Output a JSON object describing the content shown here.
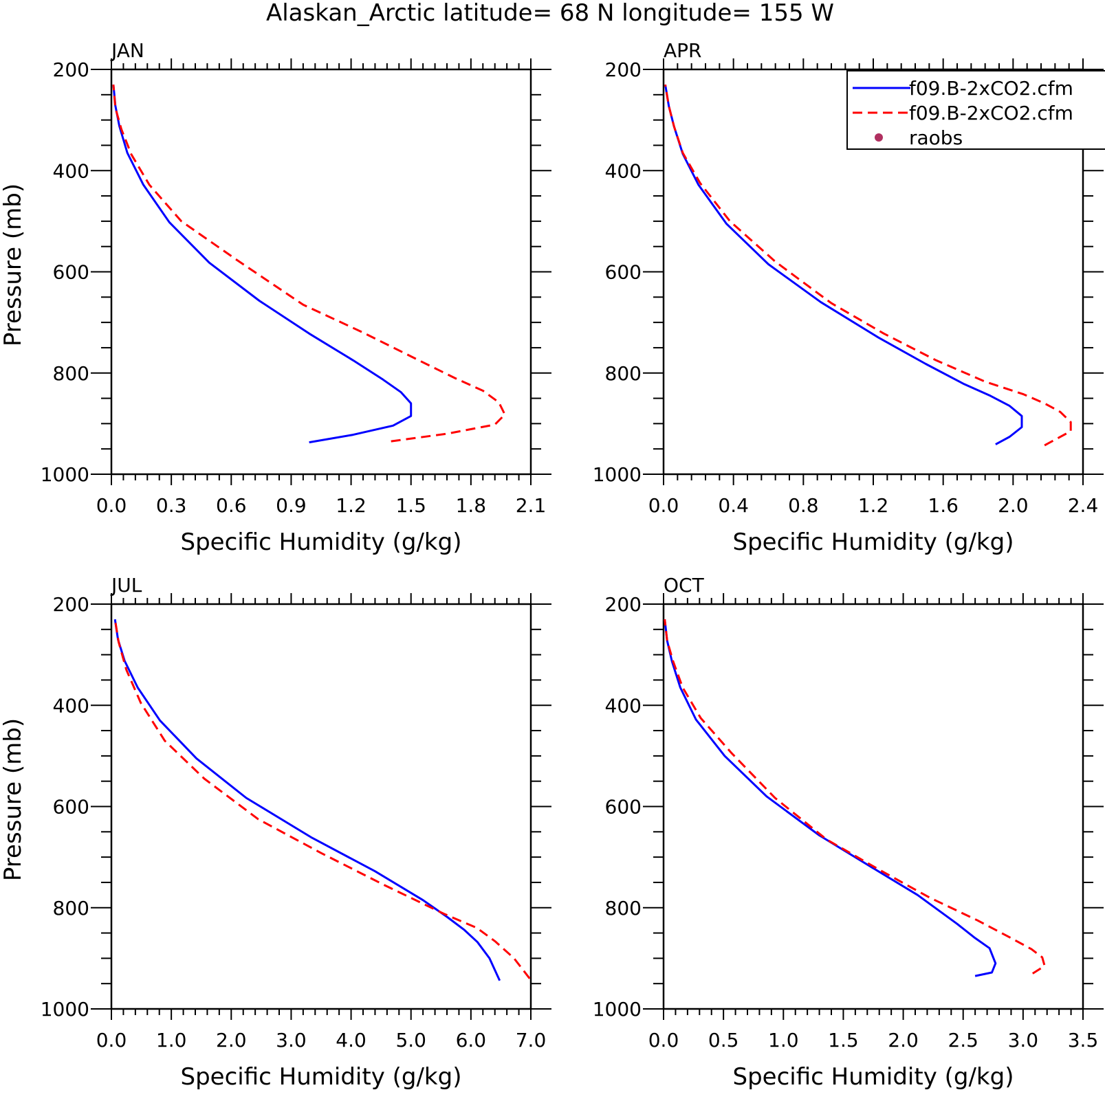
{
  "title": "Alaskan_Arctic  latitude= 68 N longitude= 155 W",
  "legend": {
    "placement": "top-right of APR panel",
    "entries": [
      {
        "label": "f09.B-2xCO2.cfm",
        "style": "solid",
        "color": "#0000ff"
      },
      {
        "label": "f09.B-2xCO2.cfm",
        "style": "dashed",
        "color": "#ff0000"
      },
      {
        "label": "raobs",
        "style": "marker",
        "color": "#b03060"
      }
    ]
  },
  "chart_data": [
    {
      "type": "line",
      "title": "JAN",
      "xlabel": "Specific Humidity (g/kg)",
      "ylabel": "Pressure (mb)",
      "xlim": [
        0,
        2.1
      ],
      "ylim": [
        1000,
        200
      ],
      "xticks": [
        "0.0",
        "0.3",
        "0.6",
        "0.9",
        "1.2",
        "1.5",
        "1.8",
        "2.1"
      ],
      "yticks": [
        "200",
        "400",
        "600",
        "800",
        "1000"
      ],
      "series": [
        {
          "name": "f09.B-2xCO2.cfm",
          "color": "#0000ff",
          "dash": "solid",
          "x": [
            0.99,
            1.21,
            1.41,
            1.5,
            1.5,
            1.45,
            1.36,
            1.21,
            0.99,
            0.74,
            0.49,
            0.29,
            0.16,
            0.08,
            0.04,
            0.02,
            0.01
          ],
          "y": [
            937,
            922,
            904,
            885,
            860,
            838,
            813,
            775,
            722,
            657,
            582,
            502,
            428,
            365,
            312,
            272,
            230
          ]
        },
        {
          "name": "f09.B-2xCO2.cfm",
          "color": "#ff0000",
          "dash": "dashed",
          "x": [
            1.4,
            1.68,
            1.92,
            1.97,
            1.94,
            1.86,
            1.72,
            1.53,
            1.26,
            0.96,
            0.63,
            0.35,
            0.19,
            0.1,
            0.05,
            0.02,
            0.01
          ],
          "y": [
            935,
            920,
            902,
            882,
            858,
            835,
            810,
            773,
            720,
            665,
            577,
            500,
            428,
            368,
            318,
            276,
            230
          ]
        }
      ]
    },
    {
      "type": "line",
      "title": "APR",
      "xlabel": "Specific Humidity (g/kg)",
      "ylabel": "",
      "xlim": [
        0,
        2.4
      ],
      "ylim": [
        1000,
        200
      ],
      "xticks": [
        "0.0",
        "0.4",
        "0.8",
        "1.2",
        "1.6",
        "2.0",
        "2.4"
      ],
      "yticks": [
        "200",
        "400",
        "600",
        "800",
        "1000"
      ],
      "series": [
        {
          "name": "f09.B-2xCO2.cfm",
          "color": "#0000ff",
          "dash": "solid",
          "x": [
            1.9,
            1.98,
            2.05,
            2.05,
            1.98,
            1.87,
            1.72,
            1.5,
            1.23,
            0.9,
            0.6,
            0.36,
            0.2,
            0.11,
            0.06,
            0.03,
            0.01
          ],
          "y": [
            941,
            926,
            907,
            885,
            865,
            845,
            822,
            782,
            730,
            660,
            585,
            505,
            428,
            367,
            313,
            272,
            230
          ]
        },
        {
          "name": "f09.B-2xCO2.cfm",
          "color": "#ff0000",
          "dash": "dashed",
          "x": [
            2.18,
            2.33,
            2.33,
            2.27,
            2.18,
            2.06,
            1.84,
            1.56,
            1.26,
            0.96,
            0.64,
            0.38,
            0.21,
            0.11,
            0.06,
            0.03,
            0.01
          ],
          "y": [
            943,
            915,
            897,
            877,
            860,
            842,
            817,
            775,
            722,
            662,
            580,
            500,
            425,
            365,
            313,
            272,
            230
          ]
        }
      ]
    },
    {
      "type": "line",
      "title": "JUL",
      "xlabel": "Specific Humidity (g/kg)",
      "ylabel": "Pressure (mb)",
      "xlim": [
        0,
        7
      ],
      "ylim": [
        1000,
        200
      ],
      "xticks": [
        "0.0",
        "1.0",
        "2.0",
        "3.0",
        "4.0",
        "5.0",
        "6.0",
        "7.0"
      ],
      "yticks": [
        "200",
        "400",
        "600",
        "800",
        "1000"
      ],
      "series": [
        {
          "name": "f09.B-2xCO2.cfm",
          "color": "#0000ff",
          "dash": "solid",
          "x": [
            6.48,
            6.31,
            6.11,
            5.89,
            5.6,
            5.2,
            4.4,
            3.35,
            2.25,
            1.42,
            0.81,
            0.44,
            0.22,
            0.11,
            0.06
          ],
          "y": [
            944,
            900,
            868,
            844,
            818,
            785,
            728,
            662,
            583,
            505,
            430,
            365,
            312,
            270,
            230
          ]
        },
        {
          "name": "f09.B-2xCO2.cfm",
          "color": "#ff0000",
          "dash": "dashed",
          "x": [
            6.98,
            6.72,
            6.41,
            6.1,
            5.55,
            4.55,
            3.5,
            2.45,
            1.55,
            0.89,
            0.49,
            0.25,
            0.12,
            0.06
          ],
          "y": [
            940,
            900,
            867,
            840,
            812,
            755,
            692,
            625,
            545,
            470,
            395,
            330,
            275,
            230
          ]
        }
      ]
    },
    {
      "type": "line",
      "title": "OCT",
      "xlabel": "Specific Humidity (g/kg)",
      "ylabel": "",
      "xlim": [
        0,
        3.5
      ],
      "ylim": [
        1000,
        200
      ],
      "xticks": [
        "0.0",
        "0.5",
        "1.0",
        "1.5",
        "2.0",
        "2.5",
        "3.0",
        "3.5"
      ],
      "yticks": [
        "200",
        "400",
        "600",
        "800",
        "1000"
      ],
      "series": [
        {
          "name": "f09.B-2xCO2.cfm",
          "color": "#0000ff",
          "dash": "solid",
          "x": [
            2.6,
            2.74,
            2.77,
            2.72,
            2.6,
            2.45,
            2.12,
            1.75,
            1.3,
            0.86,
            0.51,
            0.27,
            0.14,
            0.07,
            0.03,
            0.01
          ],
          "y": [
            935,
            928,
            910,
            880,
            860,
            832,
            775,
            722,
            657,
            580,
            500,
            428,
            365,
            313,
            272,
            230
          ]
        },
        {
          "name": "f09.B-2xCO2.cfm",
          "color": "#ff0000",
          "dash": "dashed",
          "x": [
            3.08,
            3.18,
            3.16,
            3.07,
            2.9,
            2.62,
            2.22,
            1.8,
            1.36,
            0.93,
            0.57,
            0.31,
            0.16,
            0.08,
            0.03,
            0.01
          ],
          "y": [
            930,
            915,
            898,
            882,
            860,
            825,
            780,
            725,
            665,
            583,
            495,
            425,
            365,
            313,
            272,
            230
          ]
        }
      ]
    }
  ]
}
